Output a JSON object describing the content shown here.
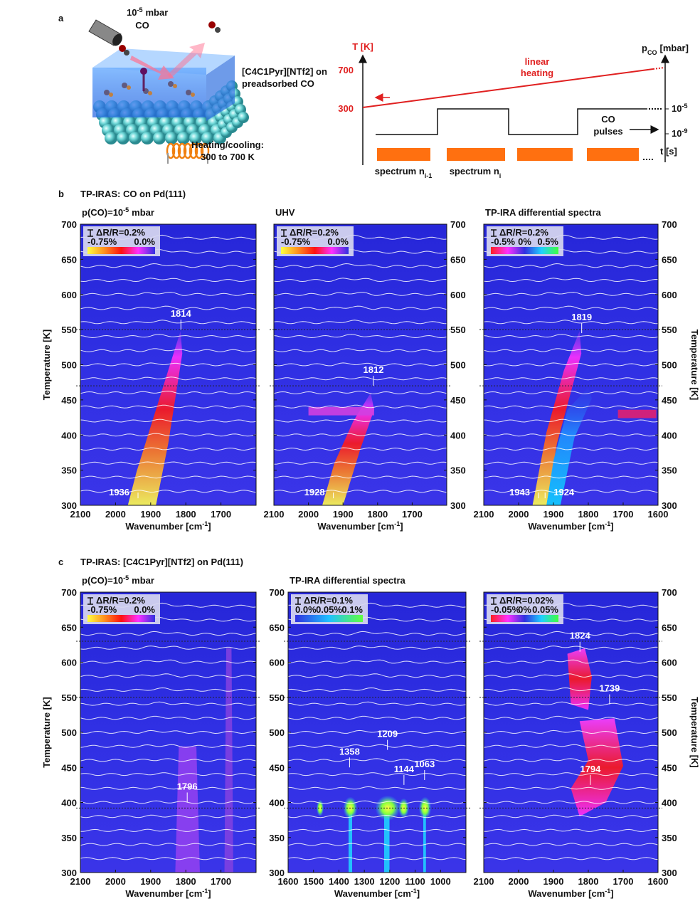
{
  "panel_a": {
    "label": "a",
    "dose": {
      "base": "10",
      "exponent": "-5",
      "unit": "mbar",
      "gas": "CO"
    },
    "film_label": {
      "line1": "[C4C1Pyr][NTf2] on",
      "line2": "preadsorbed CO"
    },
    "heater_label": {
      "line1": "Heating/cooling:",
      "line2": "300 to 700 K"
    },
    "scheme": {
      "temperature_axis": "T [K]",
      "temperature_ticks": [
        700,
        300
      ],
      "heating_label": {
        "line1": "linear",
        "line2": "heating"
      },
      "pressure_axis": {
        "base": "p",
        "sub": "CO",
        "unit": "[mbar]"
      },
      "pressure_ticks": [
        {
          "base": "10",
          "exponent": "-5"
        },
        {
          "base": "10",
          "exponent": "-9"
        }
      ],
      "pulse_label": {
        "line1": "CO",
        "line2": "pulses"
      },
      "time_axis": "t [s]",
      "spectra": [
        {
          "text": "spectrum n",
          "sub": "i-1"
        },
        {
          "text": "spectrum n",
          "sub": "i"
        }
      ]
    }
  },
  "panel_b": {
    "label": "b",
    "title": "TP-IRAS: CO on Pd(111)",
    "y_label": "Temperature [K]",
    "x_label": {
      "text": "Wavenumber [cm",
      "exponent": "-1",
      "end": "]"
    },
    "plots": [
      {
        "subtitle": {
          "text": "p(CO)=10",
          "exponent": "-5",
          "unit": "mbar"
        },
        "xlim": [
          2100,
          1600
        ],
        "xticks": [
          2100,
          2000,
          1900,
          1800,
          1700
        ],
        "ylim": [
          300,
          700
        ],
        "yticks": [
          300,
          350,
          400,
          450,
          500,
          550,
          600,
          650,
          700
        ],
        "scale_bar": "ΔR/R=0.2%",
        "colorbar_labels": [
          "-0.75%",
          "0.0%"
        ],
        "reference_lines": [
          550,
          470
        ],
        "peaks": [
          {
            "wavenumber": 1936,
            "temperature": 310
          },
          {
            "wavenumber": 1814,
            "temperature": 550
          }
        ]
      },
      {
        "subtitle": {
          "text": "UHV"
        },
        "xlim": [
          2100,
          1600
        ],
        "xticks": [
          2100,
          2000,
          1900,
          1800,
          1700
        ],
        "ylim": [
          300,
          700
        ],
        "yticks": [
          300,
          350,
          400,
          450,
          500,
          550,
          600,
          650,
          700
        ],
        "scale_bar": "ΔR/R=0.2%",
        "colorbar_labels": [
          "-0.75%",
          "0.0%"
        ],
        "reference_lines": [
          550,
          470
        ],
        "peaks": [
          {
            "wavenumber": 1928,
            "temperature": 310
          },
          {
            "wavenumber": 1812,
            "temperature": 470
          }
        ]
      },
      {
        "subtitle": {
          "text": "TP-IRA differential spectra"
        },
        "xlim": [
          2100,
          1600
        ],
        "xticks": [
          2100,
          2000,
          1900,
          1800,
          1700,
          1600
        ],
        "ylim": [
          300,
          700
        ],
        "yticks": [
          300,
          350,
          400,
          450,
          500,
          550,
          600,
          650,
          700
        ],
        "scale_bar": "ΔR/R=0.2%",
        "colorbar_labels": [
          "-0.5%",
          "0%",
          "0.5%"
        ],
        "reference_lines": [
          550,
          470
        ],
        "peaks": [
          {
            "wavenumber": 1943,
            "temperature": 310
          },
          {
            "wavenumber": 1924,
            "temperature": 310
          },
          {
            "wavenumber": 1819,
            "temperature": 545
          }
        ]
      }
    ]
  },
  "panel_c": {
    "label": "c",
    "title": "TP-IRAS: [C4C1Pyr][NTf2] on Pd(111)",
    "y_label": "Temperature [K]",
    "x_label": {
      "text": "Wavenumber [cm",
      "exponent": "-1",
      "end": "]"
    },
    "plots": [
      {
        "subtitle": {
          "text": "p(CO)=10",
          "exponent": "-5",
          "unit": "mbar"
        },
        "xlim": [
          2100,
          1600
        ],
        "xticks": [
          2100,
          2000,
          1900,
          1800,
          1700
        ],
        "ylim": [
          300,
          700
        ],
        "yticks": [
          300,
          350,
          400,
          450,
          500,
          550,
          600,
          650,
          700
        ],
        "scale_bar": "ΔR/R=0.2%",
        "colorbar_labels": [
          "-0.75%",
          "0.0%"
        ],
        "reference_lines": [
          630,
          550,
          392
        ],
        "peaks": [
          {
            "wavenumber": 1796,
            "temperature": 400
          }
        ]
      },
      {
        "subtitle": {
          "text": "TP-IRA differential spectra"
        },
        "xlim": [
          1600,
          900
        ],
        "xticks": [
          1600,
          1500,
          1400,
          1300,
          1200,
          1100,
          1000
        ],
        "ylim": [
          300,
          700
        ],
        "yticks": [
          300,
          350,
          400,
          450,
          500,
          550,
          600,
          650,
          700
        ],
        "scale_bar": "ΔR/R=0.1%",
        "colorbar_labels": [
          "0.0%",
          "0.05%",
          "0.1%"
        ],
        "reference_lines": [
          630,
          550,
          392
        ],
        "peaks": [
          {
            "wavenumber": 1358,
            "temperature": 450
          },
          {
            "wavenumber": 1209,
            "temperature": 475
          },
          {
            "wavenumber": 1144,
            "temperature": 425
          },
          {
            "wavenumber": 1063,
            "temperature": 432
          }
        ]
      },
      {
        "xlim": [
          2100,
          1600
        ],
        "xticks": [
          2100,
          2000,
          1900,
          1800,
          1700,
          1600
        ],
        "ylim": [
          300,
          700
        ],
        "yticks": [
          300,
          350,
          400,
          450,
          500,
          550,
          600,
          650,
          700
        ],
        "scale_bar": "ΔR/R=0.02%",
        "colorbar_labels": [
          "-0.05%",
          "0%",
          "0.05%"
        ],
        "reference_lines": [
          630,
          550,
          392
        ],
        "peaks": [
          {
            "wavenumber": 1824,
            "temperature": 615
          },
          {
            "wavenumber": 1739,
            "temperature": 540
          },
          {
            "wavenumber": 1794,
            "temperature": 425
          }
        ]
      }
    ]
  }
}
